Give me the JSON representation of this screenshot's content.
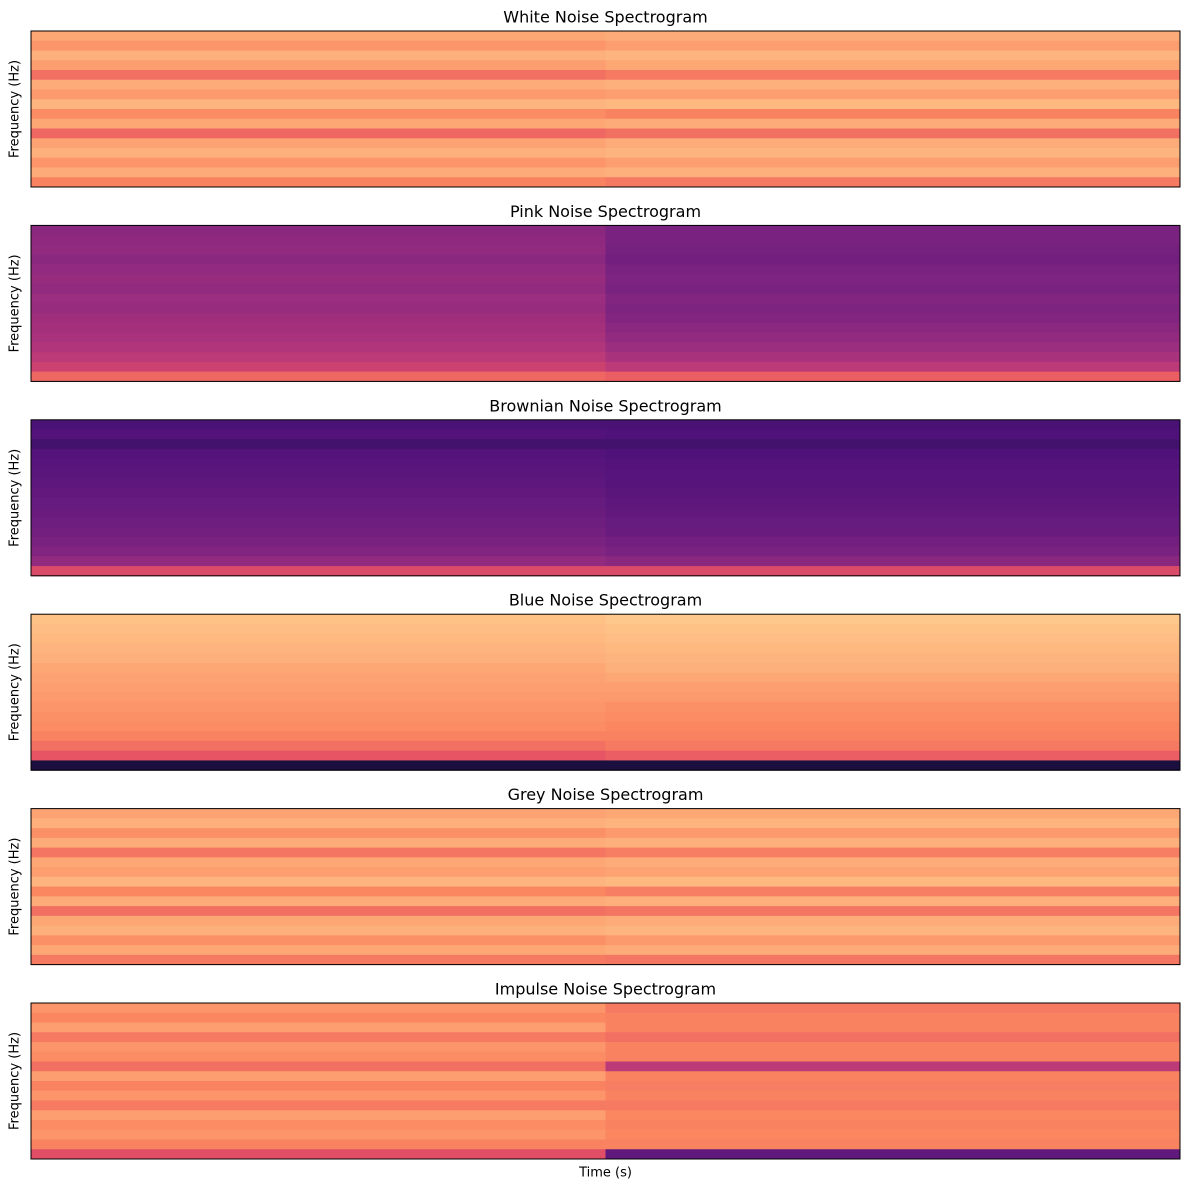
{
  "chart_data": [
    {
      "type": "heatmap",
      "title": "White Noise Spectrogram",
      "ylabel": "Frequency (Hz)",
      "colormap": "magma",
      "zlim": [
        0,
        1
      ],
      "values": [
        [
          0.82,
          0.83
        ],
        [
          0.78,
          0.8
        ],
        [
          0.84,
          0.85
        ],
        [
          0.8,
          0.82
        ],
        [
          0.7,
          0.72
        ],
        [
          0.83,
          0.84
        ],
        [
          0.79,
          0.8
        ],
        [
          0.85,
          0.86
        ],
        [
          0.76,
          0.74
        ],
        [
          0.82,
          0.83
        ],
        [
          0.68,
          0.7
        ],
        [
          0.81,
          0.83
        ],
        [
          0.84,
          0.85
        ],
        [
          0.78,
          0.8
        ],
        [
          0.83,
          0.84
        ],
        [
          0.74,
          0.72
        ]
      ]
    },
    {
      "type": "heatmap",
      "title": "Pink Noise Spectrogram",
      "ylabel": "Frequency (Hz)",
      "colormap": "magma",
      "zlim": [
        0,
        1
      ],
      "values": [
        [
          0.4,
          0.36
        ],
        [
          0.41,
          0.36
        ],
        [
          0.42,
          0.35
        ],
        [
          0.4,
          0.34
        ],
        [
          0.42,
          0.36
        ],
        [
          0.43,
          0.37
        ],
        [
          0.42,
          0.36
        ],
        [
          0.44,
          0.38
        ],
        [
          0.43,
          0.37
        ],
        [
          0.45,
          0.38
        ],
        [
          0.46,
          0.4
        ],
        [
          0.47,
          0.42
        ],
        [
          0.49,
          0.44
        ],
        [
          0.52,
          0.47
        ],
        [
          0.56,
          0.52
        ],
        [
          0.68,
          0.66
        ]
      ]
    },
    {
      "type": "heatmap",
      "title": "Brownian Noise Spectrogram",
      "ylabel": "Frequency (Hz)",
      "colormap": "magma",
      "zlim": [
        0,
        1
      ],
      "values": [
        [
          0.24,
          0.24
        ],
        [
          0.26,
          0.25
        ],
        [
          0.22,
          0.22
        ],
        [
          0.26,
          0.25
        ],
        [
          0.27,
          0.26
        ],
        [
          0.28,
          0.27
        ],
        [
          0.29,
          0.27
        ],
        [
          0.3,
          0.28
        ],
        [
          0.31,
          0.29
        ],
        [
          0.32,
          0.3
        ],
        [
          0.33,
          0.31
        ],
        [
          0.34,
          0.32
        ],
        [
          0.36,
          0.34
        ],
        [
          0.38,
          0.36
        ],
        [
          0.42,
          0.4
        ],
        [
          0.6,
          0.6
        ]
      ]
    },
    {
      "type": "heatmap",
      "title": "Blue Noise Spectrogram",
      "ylabel": "Frequency (Hz)",
      "colormap": "magma",
      "zlim": [
        0,
        1
      ],
      "values": [
        [
          0.88,
          0.89
        ],
        [
          0.87,
          0.88
        ],
        [
          0.86,
          0.87
        ],
        [
          0.85,
          0.86
        ],
        [
          0.84,
          0.85
        ],
        [
          0.82,
          0.84
        ],
        [
          0.81,
          0.82
        ],
        [
          0.8,
          0.8
        ],
        [
          0.79,
          0.79
        ],
        [
          0.78,
          0.77
        ],
        [
          0.77,
          0.76
        ],
        [
          0.76,
          0.75
        ],
        [
          0.74,
          0.74
        ],
        [
          0.7,
          0.72
        ],
        [
          0.64,
          0.66
        ],
        [
          0.12,
          0.12
        ]
      ]
    },
    {
      "type": "heatmap",
      "title": "Grey Noise Spectrogram",
      "ylabel": "Frequency (Hz)",
      "colormap": "magma",
      "zlim": [
        0,
        1
      ],
      "values": [
        [
          0.81,
          0.82
        ],
        [
          0.84,
          0.85
        ],
        [
          0.77,
          0.79
        ],
        [
          0.83,
          0.84
        ],
        [
          0.71,
          0.73
        ],
        [
          0.82,
          0.83
        ],
        [
          0.8,
          0.81
        ],
        [
          0.85,
          0.86
        ],
        [
          0.75,
          0.73
        ],
        [
          0.83,
          0.84
        ],
        [
          0.7,
          0.71
        ],
        [
          0.82,
          0.83
        ],
        [
          0.84,
          0.85
        ],
        [
          0.77,
          0.79
        ],
        [
          0.82,
          0.83
        ],
        [
          0.72,
          0.71
        ]
      ]
    },
    {
      "type": "heatmap",
      "title": "Impulse Noise Spectrogram",
      "ylabel": "Frequency (Hz)",
      "xlabel": "Time (s)",
      "colormap": "magma",
      "zlim": [
        0,
        1
      ],
      "values": [
        [
          0.78,
          0.72
        ],
        [
          0.75,
          0.74
        ],
        [
          0.8,
          0.74
        ],
        [
          0.72,
          0.7
        ],
        [
          0.78,
          0.74
        ],
        [
          0.76,
          0.74
        ],
        [
          0.7,
          0.52
        ],
        [
          0.8,
          0.74
        ],
        [
          0.74,
          0.73
        ],
        [
          0.78,
          0.74
        ],
        [
          0.72,
          0.72
        ],
        [
          0.8,
          0.75
        ],
        [
          0.76,
          0.74
        ],
        [
          0.78,
          0.75
        ],
        [
          0.74,
          0.74
        ],
        [
          0.62,
          0.3
        ]
      ]
    }
  ]
}
